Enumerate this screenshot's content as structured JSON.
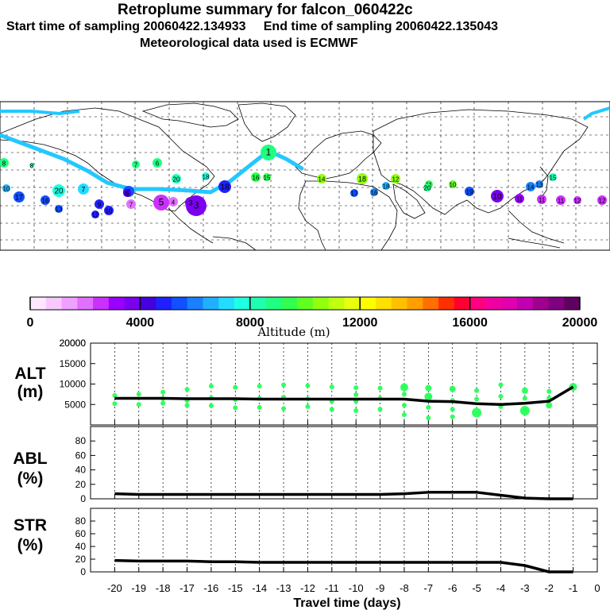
{
  "header": {
    "title": "Retroplume summary for falcon_060422c",
    "start_label": "Start time of sampling",
    "start_value": "20060422.134933",
    "end_label": "End time of sampling",
    "end_value": "20060422.135043",
    "met_text": "Meteorological data used is ECMWF"
  },
  "colorbar": {
    "title": "Altitude (m)",
    "ticks": [
      "0",
      "4000",
      "8000",
      "12000",
      "16000",
      "20000"
    ],
    "colors": [
      "#ffe8ff",
      "#f8c8ff",
      "#f0a0ff",
      "#e070ff",
      "#cc30ff",
      "#9900ff",
      "#7a00ee",
      "#4400dd",
      "#2020ff",
      "#1050ff",
      "#1a80ff",
      "#20b0ff",
      "#22ddff",
      "#20ffe0",
      "#20ffb0",
      "#20ff80",
      "#30ff50",
      "#60ff20",
      "#90ff10",
      "#c0ff10",
      "#e8ff10",
      "#ffff00",
      "#ffe000",
      "#ffc000",
      "#ffa000",
      "#ff7000",
      "#ff3000",
      "#ff0030",
      "#ff0080",
      "#f000a0",
      "#e000b0",
      "#c000b0",
      "#a00090",
      "#800080",
      "#600060"
    ]
  },
  "map": {
    "trajectory_labels": [
      "1",
      "2",
      "3",
      "4",
      "5",
      "6",
      "7",
      "8",
      "9",
      "10",
      "11",
      "12",
      "13",
      "14",
      "15",
      "16",
      "17",
      "18",
      "19",
      "20"
    ]
  },
  "chart_data": [
    {
      "type": "line",
      "title": "ALT (m)",
      "ylabel": "ALT (m)",
      "xlabel": "Travel time (days)",
      "ylim": [
        0,
        20000
      ],
      "yticks": [
        5000,
        10000,
        15000,
        20000
      ],
      "x": [
        -20,
        -19,
        -18,
        -17,
        -16,
        -15,
        -14,
        -13,
        -12,
        -11,
        -10,
        -9,
        -8,
        -7,
        -6,
        -5,
        -4,
        -3,
        -2,
        -1
      ],
      "series": [
        {
          "name": "mean altitude",
          "values": [
            6500,
            6500,
            6500,
            6400,
            6400,
            6400,
            6300,
            6300,
            6300,
            6300,
            6300,
            6300,
            6300,
            5800,
            5700,
            5200,
            5000,
            5300,
            5800,
            9300
          ]
        }
      ],
      "scatter_series": [
        {
          "name": "cluster altitudes",
          "points": [
            [
              -20,
              7200,
              3
            ],
            [
              -20,
              5200,
              3
            ],
            [
              -19,
              7500,
              3
            ],
            [
              -19,
              5000,
              3
            ],
            [
              -18,
              8000,
              3
            ],
            [
              -18,
              6400,
              3
            ],
            [
              -18,
              5300,
              3
            ],
            [
              -17,
              8700,
              3
            ],
            [
              -17,
              6000,
              3
            ],
            [
              -17,
              4800,
              3
            ],
            [
              -16,
              9500,
              3
            ],
            [
              -16,
              6600,
              3
            ],
            [
              -16,
              4700,
              3
            ],
            [
              -15,
              9200,
              3
            ],
            [
              -15,
              6200,
              3
            ],
            [
              -15,
              4200,
              3
            ],
            [
              -14,
              9500,
              3
            ],
            [
              -14,
              6500,
              3
            ],
            [
              -14,
              4300,
              3
            ],
            [
              -13,
              9800,
              3
            ],
            [
              -13,
              6800,
              3
            ],
            [
              -13,
              4000,
              3
            ],
            [
              -12,
              9600,
              3
            ],
            [
              -12,
              6400,
              3
            ],
            [
              -12,
              4500,
              3
            ],
            [
              -11,
              9300,
              3
            ],
            [
              -11,
              5800,
              3
            ],
            [
              -11,
              3800,
              3
            ],
            [
              -10,
              9100,
              3
            ],
            [
              -10,
              7400,
              3
            ],
            [
              -10,
              5800,
              3
            ],
            [
              -10,
              3500,
              3
            ],
            [
              -9,
              9000,
              3
            ],
            [
              -9,
              6500,
              3
            ],
            [
              -9,
              3800,
              3
            ],
            [
              -8,
              9200,
              5
            ],
            [
              -8,
              7500,
              3
            ],
            [
              -8,
              4800,
              3
            ],
            [
              -8,
              2500,
              3
            ],
            [
              -7,
              9000,
              4
            ],
            [
              -7,
              6900,
              5
            ],
            [
              -7,
              4300,
              3
            ],
            [
              -7,
              1700,
              3
            ],
            [
              -6,
              8800,
              4
            ],
            [
              -6,
              6000,
              3
            ],
            [
              -6,
              3800,
              3
            ],
            [
              -6,
              2000,
              3
            ],
            [
              -5,
              8400,
              3
            ],
            [
              -5,
              6300,
              3
            ],
            [
              -5,
              3000,
              6
            ],
            [
              -4,
              9800,
              3
            ],
            [
              -4,
              7000,
              3
            ],
            [
              -4,
              4500,
              3
            ],
            [
              -3,
              8400,
              4
            ],
            [
              -3,
              6500,
              3
            ],
            [
              -3,
              3500,
              6
            ],
            [
              -2,
              8200,
              3
            ],
            [
              -2,
              6600,
              3
            ],
            [
              -2,
              4800,
              4
            ],
            [
              -1,
              9300,
              5
            ]
          ]
        }
      ]
    },
    {
      "type": "line",
      "title": "ABL (%)",
      "ylabel": "ABL (%)",
      "ylim": [
        0,
        100
      ],
      "yticks": [
        0,
        20,
        40,
        60,
        80
      ],
      "x": [
        -20,
        -19,
        -18,
        -17,
        -16,
        -15,
        -14,
        -13,
        -12,
        -11,
        -10,
        -9,
        -8,
        -7,
        -6,
        -5,
        -4,
        -3,
        -2,
        -1
      ],
      "series": [
        {
          "name": "ABL fraction",
          "values": [
            7,
            6,
            6,
            6,
            6,
            6,
            6,
            6,
            6,
            6,
            6,
            6,
            7,
            9,
            9,
            9,
            5,
            1,
            0,
            0
          ]
        }
      ]
    },
    {
      "type": "line",
      "title": "STR (%)",
      "ylabel": "STR (%)",
      "ylim": [
        0,
        100
      ],
      "yticks": [
        0,
        20,
        40,
        60,
        80
      ],
      "x": [
        -20,
        -19,
        -18,
        -17,
        -16,
        -15,
        -14,
        -13,
        -12,
        -11,
        -10,
        -9,
        -8,
        -7,
        -6,
        -5,
        -4,
        -3,
        -2,
        -1
      ],
      "series": [
        {
          "name": "stratosphere fraction",
          "values": [
            18,
            17,
            17,
            17,
            16,
            16,
            15,
            15,
            15,
            15,
            15,
            15,
            15,
            15,
            15,
            15,
            15,
            10,
            0,
            0
          ]
        }
      ]
    }
  ],
  "axes": {
    "alt_label_top": "ALT",
    "alt_label_bottom": "(m)",
    "abl_label_top": "ABL",
    "abl_label_bottom": "(%)",
    "str_label_top": "STR",
    "str_label_bottom": "(%)",
    "x_ticks": [
      "-20",
      "-19",
      "-18",
      "-17",
      "-16",
      "-15",
      "-14",
      "-13",
      "-12",
      "-11",
      "-10",
      "-9",
      "-8",
      "-7",
      "-6",
      "-5",
      "-4",
      "-3",
      "-2",
      "-1",
      "0"
    ],
    "x_title": "Travel time (days)"
  }
}
